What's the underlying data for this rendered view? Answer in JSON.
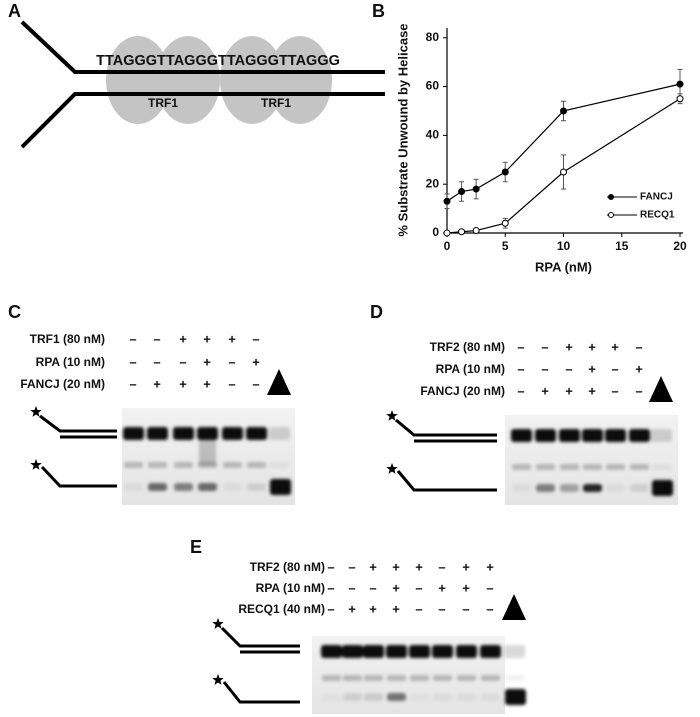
{
  "panel_a": {
    "label": "A",
    "sequence": "TTAGGGTTAGGGTTAGGGTTAGGG",
    "proteins": [
      "TRF1",
      "TRF1"
    ]
  },
  "chart_data": {
    "type": "line",
    "panel_label": "B",
    "x_label": "RPA (nM)",
    "y_label": "% Substrate Unwound by Helicase",
    "x": [
      0,
      1.25,
      2.5,
      5,
      10,
      20
    ],
    "series": [
      {
        "name": "FANCJ",
        "color": "#000000",
        "marker_fill": "#000000",
        "values": [
          13,
          17,
          18,
          25,
          50,
          61
        ],
        "errors": [
          3,
          4,
          4,
          4,
          4,
          6
        ]
      },
      {
        "name": "RECQ1",
        "color": "#000000",
        "marker_fill": "#ffffff",
        "values": [
          0,
          0.5,
          1,
          4,
          25,
          55
        ],
        "errors": [
          0,
          0,
          0,
          2,
          7,
          2
        ]
      }
    ],
    "xlim": [
      0,
      20
    ],
    "xticks": [
      0,
      5,
      10,
      15,
      20
    ],
    "ylim": [
      0,
      84
    ],
    "yticks": [
      0,
      20,
      40,
      60,
      80
    ],
    "grid": false,
    "legend": "right"
  },
  "gels": [
    {
      "label": "C",
      "rows": [
        {
          "name": "TRF1 (80 nM)",
          "lanes": [
            "–",
            "–",
            "+",
            "+",
            "+",
            "–"
          ]
        },
        {
          "name": "RPA (10 nM)",
          "lanes": [
            "–",
            "–",
            "–",
            "+",
            "–",
            "+"
          ]
        },
        {
          "name": "FANCJ (20 nM)",
          "lanes": [
            "–",
            "+",
            "+",
            "+",
            "–",
            "–"
          ]
        }
      ]
    },
    {
      "label": "D",
      "rows": [
        {
          "name": "TRF2 (80 nM)",
          "lanes": [
            "–",
            "–",
            "+",
            "+",
            "+",
            "–"
          ]
        },
        {
          "name": "RPA (10 nM)",
          "lanes": [
            "–",
            "–",
            "–",
            "+",
            "–",
            "+"
          ]
        },
        {
          "name": "FANCJ (20 nM)",
          "lanes": [
            "–",
            "+",
            "+",
            "+",
            "–",
            "–"
          ]
        }
      ]
    },
    {
      "label": "E",
      "rows": [
        {
          "name": "TRF2 (80 nM)",
          "lanes": [
            "–",
            "–",
            "+",
            "+",
            "+",
            "–",
            "+",
            "+"
          ]
        },
        {
          "name": "RPA (10 nM)",
          "lanes": [
            "–",
            "–",
            "–",
            "+",
            "–",
            "+",
            "+",
            "–"
          ]
        },
        {
          "name": "RECQ1 (40 nM)",
          "lanes": [
            "–",
            "+",
            "+",
            "+",
            "–",
            "–",
            "–",
            "–"
          ]
        }
      ]
    }
  ]
}
